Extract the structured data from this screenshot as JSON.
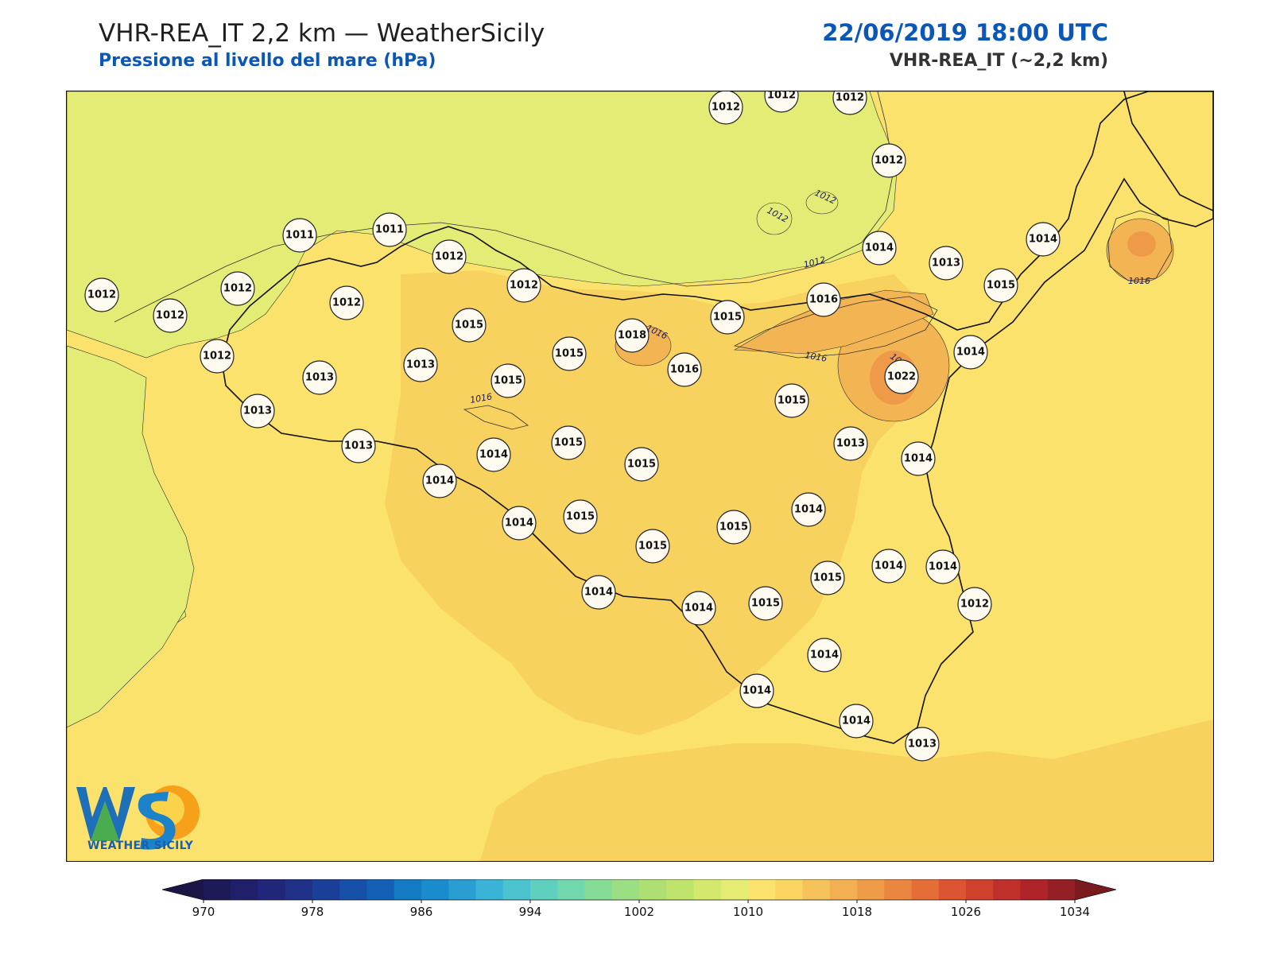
{
  "header": {
    "title": "VHR-REA_IT 2,2 km — WeatherSicily",
    "subtitle": "Pressione al livello del mare (hPa)",
    "valid_time": "22/06/2019 18:00 UTC",
    "model_label": "VHR-REA_IT (~2,2 km)"
  },
  "colors": {
    "low_pressure_fill": "#e3ec74",
    "base_fill": "#fbe26c",
    "mid_fill": "#f8d25e",
    "high_fill": "#f3b553",
    "core_fill": "#ef9a48",
    "title_blue": "#0b57b8"
  },
  "isobar_labels": [
    "1012",
    "1012",
    "1012",
    "1016",
    "1016",
    "1016",
    "1016",
    "1020"
  ],
  "stations": [
    {
      "value": "1012"
    },
    {
      "value": "1012"
    },
    {
      "value": "1012"
    },
    {
      "value": "1012"
    },
    {
      "value": "1012"
    },
    {
      "value": "1012"
    },
    {
      "value": "1012"
    },
    {
      "value": "1011"
    },
    {
      "value": "1011"
    },
    {
      "value": "1012"
    },
    {
      "value": "1012"
    },
    {
      "value": "1012"
    },
    {
      "value": "1012"
    },
    {
      "value": "1014"
    },
    {
      "value": "1013"
    },
    {
      "value": "1014"
    },
    {
      "value": "1015"
    },
    {
      "value": "1016"
    },
    {
      "value": "1015"
    },
    {
      "value": "1015"
    },
    {
      "value": "1015"
    },
    {
      "value": "1018"
    },
    {
      "value": "1016"
    },
    {
      "value": "1014"
    },
    {
      "value": "1022"
    },
    {
      "value": "1013"
    },
    {
      "value": "1013"
    },
    {
      "value": "1015"
    },
    {
      "value": "1015"
    },
    {
      "value": "1013"
    },
    {
      "value": "1013"
    },
    {
      "value": "1014"
    },
    {
      "value": "1015"
    },
    {
      "value": "1015"
    },
    {
      "value": "1014"
    },
    {
      "value": "1013"
    },
    {
      "value": "1014"
    },
    {
      "value": "1015"
    },
    {
      "value": "1014"
    },
    {
      "value": "1014"
    },
    {
      "value": "1015"
    },
    {
      "value": "1015"
    },
    {
      "value": "1014"
    },
    {
      "value": "1015"
    },
    {
      "value": "1014"
    },
    {
      "value": "1012"
    },
    {
      "value": "1014"
    },
    {
      "value": "1015"
    },
    {
      "value": "1014"
    },
    {
      "value": "1014"
    },
    {
      "value": "1014"
    },
    {
      "value": "1014"
    },
    {
      "value": "1013"
    }
  ],
  "logo": {
    "mark": "WS",
    "text": "WEATHER SICILY"
  },
  "colorbar": {
    "min": 970,
    "max": 1034,
    "step": 2,
    "tick_labels": [
      "970",
      "978",
      "986",
      "994",
      "1002",
      "1010",
      "1018",
      "1026",
      "1034"
    ],
    "colors": [
      "#1e1a57",
      "#211f6a",
      "#22267a",
      "#1f3288",
      "#1a3f98",
      "#1650a8",
      "#1360b6",
      "#137ac4",
      "#1a8bcc",
      "#2a9dd2",
      "#3ab3d6",
      "#4bc3cf",
      "#5fcfc0",
      "#72d7ac",
      "#86db97",
      "#9adf84",
      "#addf72",
      "#bfe36b",
      "#d3e86c",
      "#e4ec74",
      "#fbe26c",
      "#f9d461",
      "#f6c25a",
      "#f2b052",
      "#ef9c49",
      "#eb8640",
      "#e56d38",
      "#dc5431",
      "#cf402d",
      "#bf302b",
      "#ae2429",
      "#941f25"
    ],
    "under_color": "#1a1646",
    "over_color": "#7a1a1e"
  }
}
